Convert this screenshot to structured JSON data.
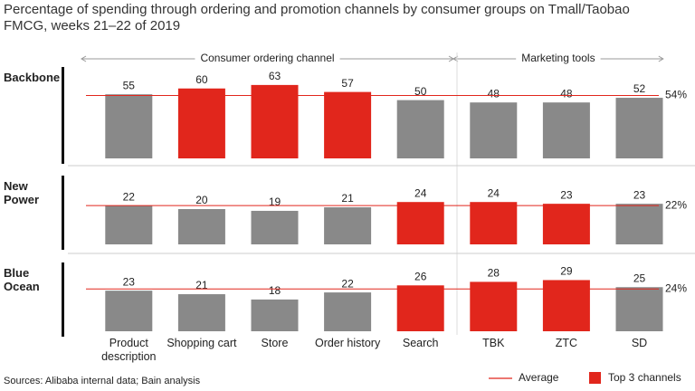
{
  "chart_data": {
    "type": "bar",
    "title": "Percentage of spending through ordering and promotion channels by consumer groups on Tmall/Taobao FMCG, weeks 21–22 of 2019",
    "groups": [
      {
        "label": "Consumer ordering channel",
        "categories": [
          "Product description",
          "Shopping cart",
          "Store",
          "Order history",
          "Search"
        ]
      },
      {
        "label": "Marketing tools",
        "categories": [
          "TBK",
          "ZTC",
          "SD"
        ]
      }
    ],
    "panels": [
      {
        "name": "Backbone",
        "values": [
          55,
          60,
          63,
          57,
          50,
          48,
          48,
          52
        ],
        "colors": [
          "#898989",
          "#e1261c",
          "#e1261c",
          "#e1261c",
          "#898989",
          "#898989",
          "#898989",
          "#898989"
        ],
        "average": 54,
        "average_label": "54%",
        "ylim": [
          0,
          80
        ]
      },
      {
        "name": "New Power",
        "values": [
          22,
          20,
          19,
          21,
          24,
          24,
          23,
          23
        ],
        "colors": [
          "#898989",
          "#898989",
          "#898989",
          "#898989",
          "#e1261c",
          "#e1261c",
          "#e1261c",
          "#898989"
        ],
        "average": 22,
        "average_label": "22%",
        "ylim": [
          0,
          40
        ]
      },
      {
        "name": "Blue Ocean",
        "values": [
          23,
          21,
          18,
          22,
          26,
          28,
          29,
          25
        ],
        "colors": [
          "#898989",
          "#898989",
          "#898989",
          "#898989",
          "#e1261c",
          "#e1261c",
          "#e1261c",
          "#898989"
        ],
        "average": 24,
        "average_label": "24%",
        "ylim": [
          0,
          40
        ]
      }
    ],
    "legend": [
      {
        "label": "Average",
        "color": "#e1261c"
      },
      {
        "label": "Top 3 channels",
        "color": "#e1261c"
      }
    ],
    "source": "Sources: Alibaba internal data; Bain analysis"
  }
}
